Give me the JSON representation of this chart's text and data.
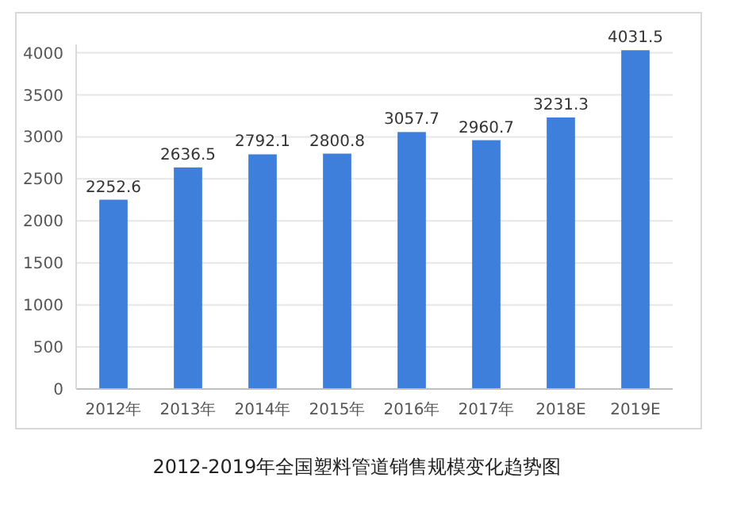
{
  "chart_data": {
    "type": "bar",
    "title": "2012-2019年全国塑料管道销售规模变化趋势图",
    "categories": [
      "2012年",
      "2013年",
      "2014年",
      "2015年",
      "2016年",
      "2017年",
      "2018E",
      "2019E"
    ],
    "values": [
      2252.6,
      2636.5,
      2792.1,
      2800.8,
      3057.7,
      2960.7,
      3231.3,
      4031.5
    ],
    "color": "#3f7fdc",
    "ylim": [
      0,
      4100
    ],
    "yticks": [
      0,
      500,
      1000,
      1500,
      2000,
      2500,
      3000,
      3500,
      4000
    ],
    "grid": "y",
    "data_labels": true
  }
}
